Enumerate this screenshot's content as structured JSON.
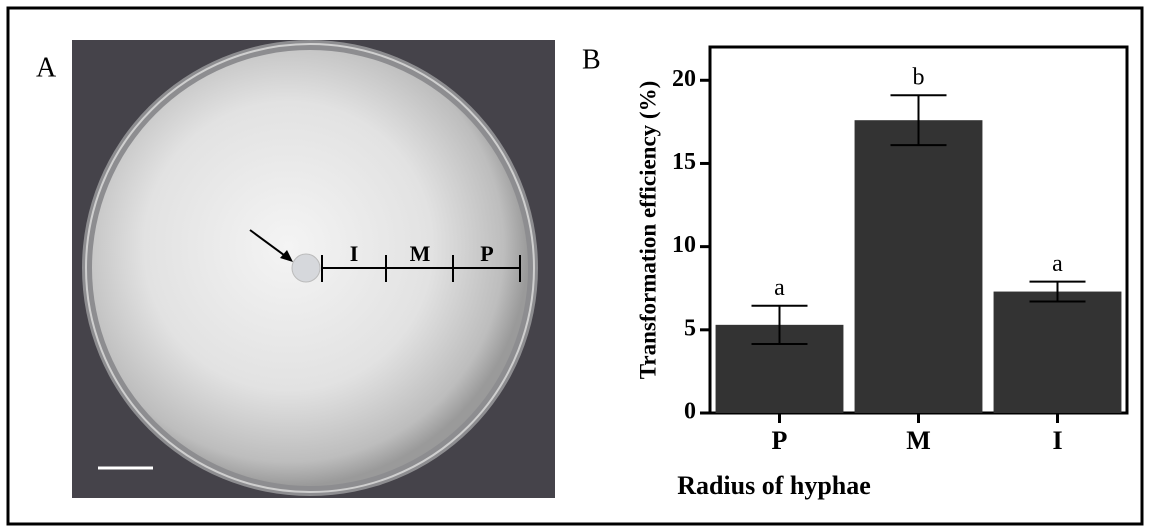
{
  "panel_a": {
    "label": "A",
    "segments": [
      "I",
      "M",
      "P"
    ]
  },
  "chart_data": {
    "type": "bar",
    "panel_label": "B",
    "categories": [
      "P",
      "M",
      "I"
    ],
    "values": [
      5.3,
      17.6,
      7.3
    ],
    "errors": [
      1.15,
      1.5,
      0.6
    ],
    "annotations": [
      "a",
      "b",
      "a"
    ],
    "color": "#333333",
    "xlabel": "Radius of hyphae",
    "ylabel": "Transformation efficiency (%)",
    "ylim": [
      0,
      22
    ],
    "yticks": [
      0,
      5,
      10,
      15,
      20
    ]
  }
}
